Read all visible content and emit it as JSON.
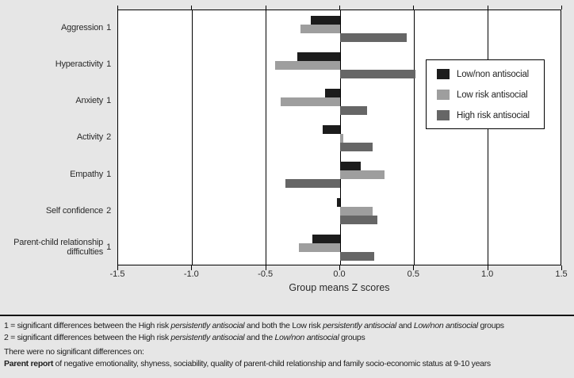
{
  "colors": {
    "page_background": "#e6e6e6",
    "plot_background": "#ffffff",
    "axis_line": "#000000",
    "series_black": "#1c1c1c",
    "series_light_gray": "#9e9e9e",
    "series_dark_gray": "#666666"
  },
  "chart_data": {
    "type": "bar",
    "orientation": "horizontal",
    "title": "",
    "xlabel": "Group means Z scores",
    "ylabel": "",
    "xlim": [
      -1.5,
      1.5
    ],
    "xticks": [
      -1.5,
      -1.0,
      -0.5,
      0.0,
      0.5,
      1.0,
      1.5
    ],
    "xtick_labels": [
      "-1.5",
      "-1.0",
      "-0.5",
      "0.0",
      "0.5",
      "1.0",
      "1.5"
    ],
    "grid": "vertical",
    "legend_position": "inside-right",
    "categories": [
      {
        "lines": [
          "Aggression"
        ],
        "suffix": "1",
        "full": "Aggression 1"
      },
      {
        "lines": [
          "Hyperactivity"
        ],
        "suffix": "1",
        "full": "Hyperactivity 1"
      },
      {
        "lines": [
          "Anxiety"
        ],
        "suffix": "1",
        "full": "Anxiety 1"
      },
      {
        "lines": [
          "Activity"
        ],
        "suffix": "2",
        "full": "Activity 2"
      },
      {
        "lines": [
          "Empathy"
        ],
        "suffix": "1",
        "full": "Empathy 1"
      },
      {
        "lines": [
          "Self confidence"
        ],
        "suffix": "2",
        "full": "Self confidence 2"
      },
      {
        "lines": [
          "Parent-child relationship",
          "difficulties"
        ],
        "suffix": "1",
        "full": "Parent-child relationship difficulties 1"
      }
    ],
    "series": [
      {
        "name": "Low/non antisocial",
        "color": "#1c1c1c",
        "values": [
          -0.2,
          -0.29,
          -0.1,
          -0.12,
          0.14,
          -0.02,
          -0.19
        ]
      },
      {
        "name": "Low risk antisocial",
        "color": "#9e9e9e",
        "values": [
          -0.27,
          -0.44,
          -0.4,
          0.02,
          0.3,
          0.22,
          -0.28
        ]
      },
      {
        "name": "High risk antisocial",
        "color": "#666666",
        "values": [
          0.45,
          0.51,
          0.18,
          0.22,
          -0.37,
          0.25,
          0.23
        ]
      }
    ]
  },
  "footnotes": {
    "lines": [
      {
        "segments": [
          {
            "text": "1 = significant differences between the High risk "
          },
          {
            "text": "persistently antisocial",
            "style": "italic"
          },
          {
            "text": " and both the Low risk "
          },
          {
            "text": "persistently antisocial",
            "style": "italic"
          },
          {
            "text": " and "
          },
          {
            "text": "Low/non antisocial",
            "style": "italic"
          },
          {
            "text": " groups"
          }
        ]
      },
      {
        "segments": [
          {
            "text": "2 = significant differences between the High risk "
          },
          {
            "text": "persistently antisocial",
            "style": "italic"
          },
          {
            "text": " and the "
          },
          {
            "text": "Low/non antisocial",
            "style": "italic"
          },
          {
            "text": " groups"
          }
        ]
      },
      {
        "segments": [
          {
            "text": "There were no significant differences on:"
          }
        ]
      },
      {
        "segments": [
          {
            "text": "Parent report",
            "style": "bold"
          },
          {
            "text": " of negative emotionality, shyness, sociability, quality of parent-child relationship and family socio-economic status at 9-10 years"
          }
        ]
      }
    ]
  }
}
